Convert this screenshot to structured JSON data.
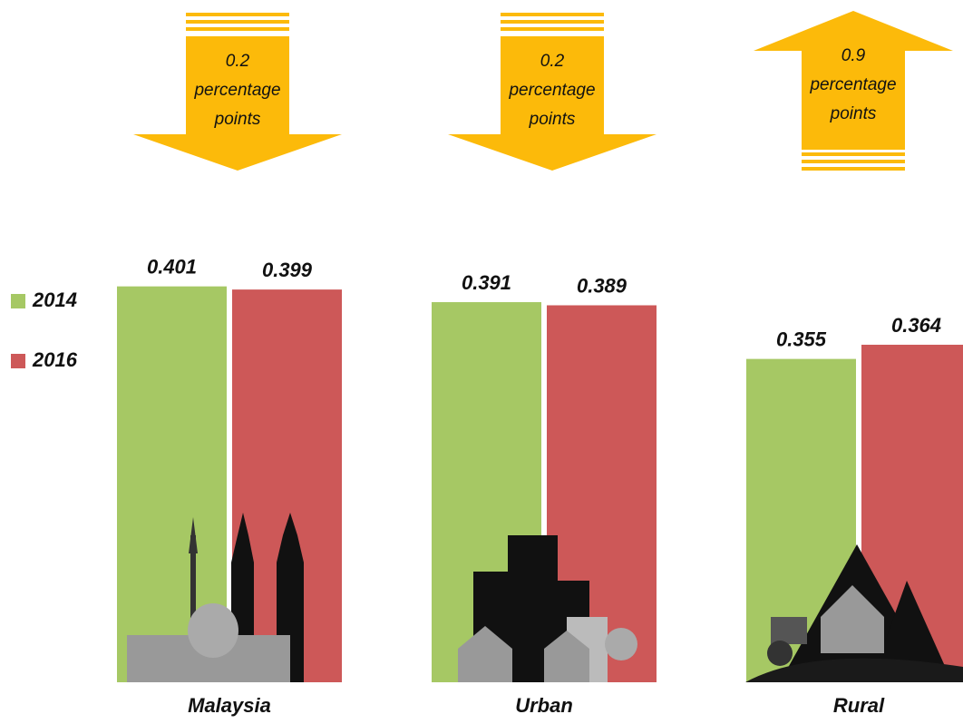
{
  "chart_data": {
    "type": "bar",
    "categories": [
      "Malaysia",
      "Urban",
      "Rural"
    ],
    "series": [
      {
        "name": "2014",
        "color": "#a6c864",
        "values": [
          0.401,
          0.391,
          0.355
        ]
      },
      {
        "name": "2016",
        "color": "#cd5858",
        "values": [
          0.399,
          0.389,
          0.364
        ]
      }
    ],
    "ylim": [
      0.15,
      0.41
    ],
    "legend": "left",
    "annotations": [
      {
        "lines": [
          "0.2",
          "percentage",
          "points"
        ],
        "direction": "down"
      },
      {
        "lines": [
          "0.2",
          "percentage",
          "points"
        ],
        "direction": "down"
      },
      {
        "lines": [
          "0.9",
          "percentage",
          "points"
        ],
        "direction": "up"
      }
    ],
    "arrow_color": "#fcba0a"
  }
}
